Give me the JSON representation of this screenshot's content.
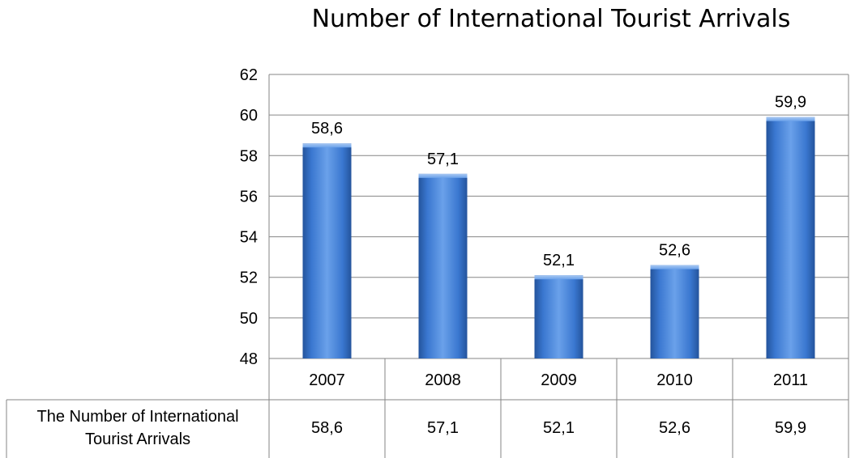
{
  "chart_data": {
    "type": "bar",
    "title": "Number of International Tourist Arrivals",
    "categories": [
      "2007",
      "2008",
      "2009",
      "2010",
      "2011"
    ],
    "series": [
      {
        "name": "The Number of International Tourist Arrivals",
        "values": [
          58.6,
          57.1,
          52.1,
          52.6,
          59.9
        ]
      }
    ],
    "data_labels": [
      "58,6",
      "57,1",
      "52,1",
      "52,6",
      "59,9"
    ],
    "yticks": [
      "48",
      "50",
      "52",
      "54",
      "56",
      "58",
      "60",
      "62"
    ],
    "ylim": [
      48,
      62
    ],
    "grid": true,
    "legend": "none",
    "data_table": {
      "row_header": "The Number of International Tourist Arrivals",
      "row_header_lines": [
        "The Number of International",
        "Tourist Arrivals"
      ],
      "values": [
        "58,6",
        "57,1",
        "52,1",
        "52,6",
        "59,9"
      ]
    },
    "colors": {
      "bar": "#3a77d0",
      "bar_light": "#6aa1ea",
      "bar_dark": "#24549c",
      "grid": "#868686"
    }
  }
}
